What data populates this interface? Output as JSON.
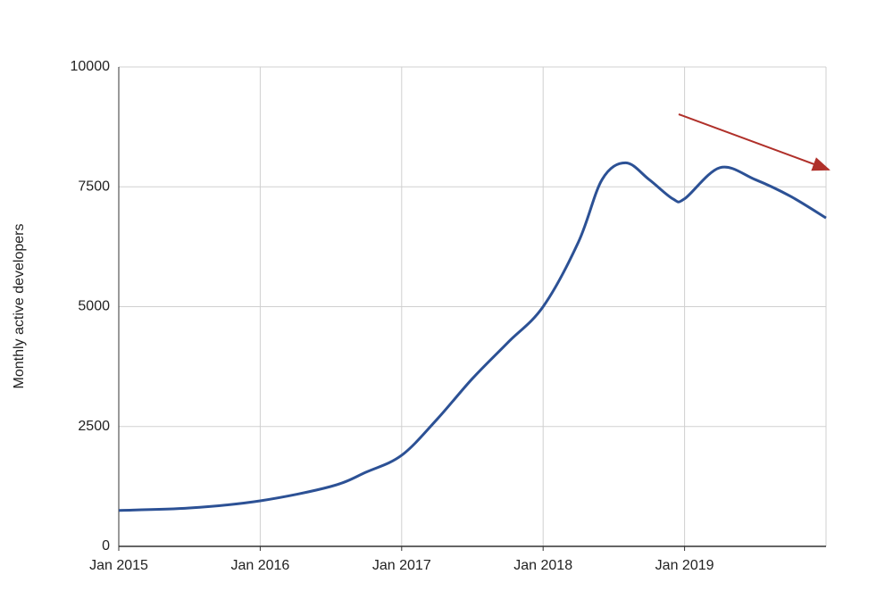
{
  "chart_data": {
    "type": "line",
    "y_label": "Monthly active developers",
    "x": [
      "2015-01",
      "2015-07",
      "2016-01",
      "2016-07",
      "2016-10",
      "2017-01",
      "2017-04",
      "2017-07",
      "2017-10",
      "2018-01",
      "2018-04",
      "2018-06",
      "2018-08",
      "2018-10",
      "2018-12",
      "2019-01",
      "2019-04",
      "2019-07",
      "2019-10",
      "2020-01"
    ],
    "series": [
      {
        "name": "Monthly active developers",
        "color": "#2c5195",
        "values": [
          750,
          800,
          950,
          1250,
          1550,
          1900,
          2650,
          3500,
          4250,
          5000,
          6350,
          7650,
          8000,
          7650,
          7250,
          7250,
          7900,
          7650,
          7300,
          6850
        ]
      }
    ],
    "xlim": [
      "2015-01",
      "2020-01"
    ],
    "xticks": [
      {
        "value": "2015-01",
        "label": "Jan 2015"
      },
      {
        "value": "2016-01",
        "label": "Jan 2016"
      },
      {
        "value": "2017-01",
        "label": "Jan 2017"
      },
      {
        "value": "2018-01",
        "label": "Jan 2018"
      },
      {
        "value": "2019-01",
        "label": "Jan 2019"
      }
    ],
    "ylim": [
      0,
      10000
    ],
    "yticks": [
      0,
      2500,
      5000,
      7500,
      10000
    ],
    "grid": true
  }
}
